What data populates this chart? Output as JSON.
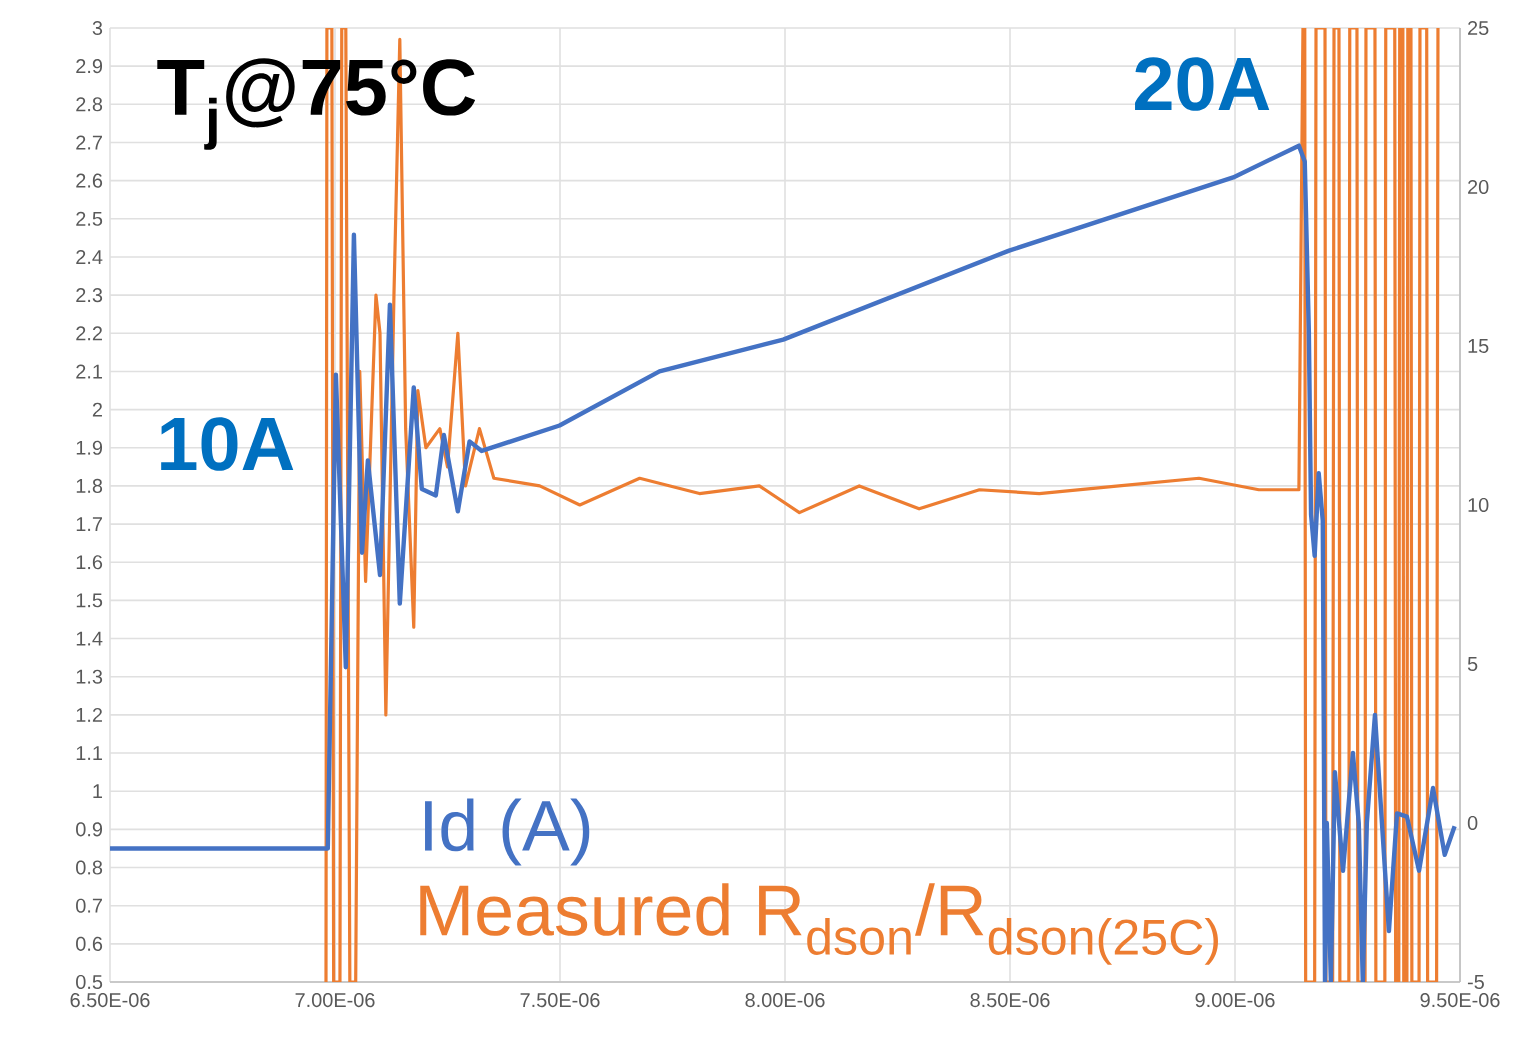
{
  "chart_data": {
    "type": "line",
    "annotations": [
      "T$_{j}$@75°C",
      "10A",
      "20A"
    ],
    "xlim": [
      6.5e-06,
      9.5e-06
    ],
    "xticks": [
      {
        "value": 6.5e-06,
        "label": "6.50E-06"
      },
      {
        "value": 7e-06,
        "label": "7.00E-06"
      },
      {
        "value": 7.5e-06,
        "label": "7.50E-06"
      },
      {
        "value": 8e-06,
        "label": "8.00E-06"
      },
      {
        "value": 8.5e-06,
        "label": "8.50E-06"
      },
      {
        "value": 9e-06,
        "label": "9.00E-06"
      },
      {
        "value": 9.5e-06,
        "label": "9.50E-06"
      }
    ],
    "ylim": [
      0.5,
      3
    ],
    "yticks": [
      0.5,
      0.6,
      0.7,
      0.8,
      0.9,
      1,
      1.1,
      1.2,
      1.3,
      1.4,
      1.5,
      1.6,
      1.7,
      1.8,
      1.9,
      2,
      2.1,
      2.2,
      2.3,
      2.4,
      2.5,
      2.6,
      2.7,
      2.8,
      2.9,
      3
    ],
    "y2lim": [
      -5,
      25
    ],
    "y2ticks": [
      -5,
      0,
      5,
      10,
      15,
      20,
      25
    ],
    "grid": true,
    "series": [
      {
        "name": "Id (A)",
        "color": "#4472c4",
        "axis": "y2",
        "x": [
          6.5e-06,
          6.984e-06,
          7.002e-06,
          7.024e-06,
          7.042e-06,
          7.06e-06,
          7.073e-06,
          7.1e-06,
          7.122e-06,
          7.144e-06,
          7.175e-06,
          7.193e-06,
          7.224e-06,
          7.242e-06,
          7.273e-06,
          7.299e-06,
          7.326e-06,
          7.499e-06,
          7.721e-06,
          7.996e-06,
          8.498e-06,
          8.996e-06,
          9.142e-06,
          9.155e-06,
          9.164e-06,
          9.169e-06,
          9.177e-06,
          9.186e-06,
          9.195e-06,
          9.2e-06,
          9.204e-06,
          9.213e-06,
          9.222e-06,
          9.24e-06,
          9.262e-06,
          9.275e-06,
          9.284e-06,
          9.293e-06,
          9.311e-06,
          9.342e-06,
          9.36e-06,
          9.382e-06,
          9.409e-06,
          9.44e-06,
          9.466e-06,
          9.488e-06
        ],
        "values": [
          -0.8,
          -0.8,
          14.1,
          4.9,
          18.5,
          8.5,
          11.4,
          7.8,
          16.3,
          6.9,
          13.7,
          10.5,
          10.3,
          12.2,
          9.8,
          12.0,
          11.7,
          12.5,
          14.2,
          15.2,
          18.0,
          20.3,
          21.3,
          20.8,
          15.5,
          9.7,
          8.4,
          11.0,
          9.5,
          -5,
          0,
          -5,
          1.6,
          -1.5,
          2.2,
          0,
          -5,
          0,
          3.4,
          -3.4,
          0.3,
          0.2,
          -1.5,
          1.1,
          -1,
          -0.1
        ]
      },
      {
        "name": "Measured R$_{dson}$/R$_{dson(25C)}$",
        "color": "#ed7d31",
        "x": [
          6.98e-06,
          6.982e-06,
          6.993e-06,
          6.997e-06,
          7.011e-06,
          7.015e-06,
          7.024e-06,
          7.033e-06,
          7.046e-06,
          7.055e-06,
          7.068e-06,
          7.091e-06,
          7.1e-06,
          7.113e-06,
          7.131e-06,
          7.144e-06,
          7.157e-06,
          7.175e-06,
          7.184e-06,
          7.202e-06,
          7.233e-06,
          7.25e-06,
          7.273e-06,
          7.29e-06,
          7.321e-06,
          7.353e-06,
          7.455e-06,
          7.544e-06,
          7.677e-06,
          7.81e-06,
          7.943e-06,
          8.032e-06,
          8.165e-06,
          8.298e-06,
          8.432e-06,
          8.565e-06,
          8.742e-06,
          8.92e-06,
          9.053e-06,
          9.142e-06,
          9.151e-06,
          9.155e-06,
          9.157e-06,
          9.177e-06,
          9.18e-06,
          9.2e-06,
          9.202e-06,
          9.217e-06,
          9.22e-06,
          9.231e-06,
          9.233e-06,
          9.253e-06,
          9.255e-06,
          9.271e-06,
          9.273e-06,
          9.289e-06,
          9.291e-06,
          9.311e-06,
          9.313e-06,
          9.333e-06,
          9.335e-06,
          9.355e-06,
          9.357e-06,
          9.364e-06,
          9.366e-06,
          9.373e-06,
          9.375e-06,
          9.382e-06,
          9.384e-06,
          9.391e-06,
          9.393e-06,
          9.409e-06,
          9.411e-06,
          9.426e-06,
          9.428e-06,
          9.448e-06,
          9.451e-06
        ],
        "values": [
          0.5,
          3,
          3,
          0.5,
          0.5,
          3,
          3,
          0.5,
          0.5,
          2.1,
          1.55,
          2.3,
          2.2,
          1.2,
          2.3,
          2.97,
          1.95,
          1.43,
          2.05,
          1.9,
          1.95,
          1.85,
          2.2,
          1.8,
          1.95,
          1.82,
          1.8,
          1.75,
          1.82,
          1.78,
          1.8,
          1.73,
          1.8,
          1.74,
          1.79,
          1.78,
          1.8,
          1.82,
          1.79,
          1.79,
          3,
          3,
          0.5,
          0.5,
          3,
          3,
          0.5,
          0.5,
          3,
          3,
          0.5,
          0.5,
          3,
          3,
          0.5,
          0.5,
          3,
          3,
          0.5,
          0.5,
          3,
          3,
          0.5,
          0.5,
          3,
          3,
          0.5,
          0.5,
          3,
          3,
          0.5,
          0.5,
          3,
          3,
          0.5,
          0.5,
          3
        ]
      }
    ]
  }
}
